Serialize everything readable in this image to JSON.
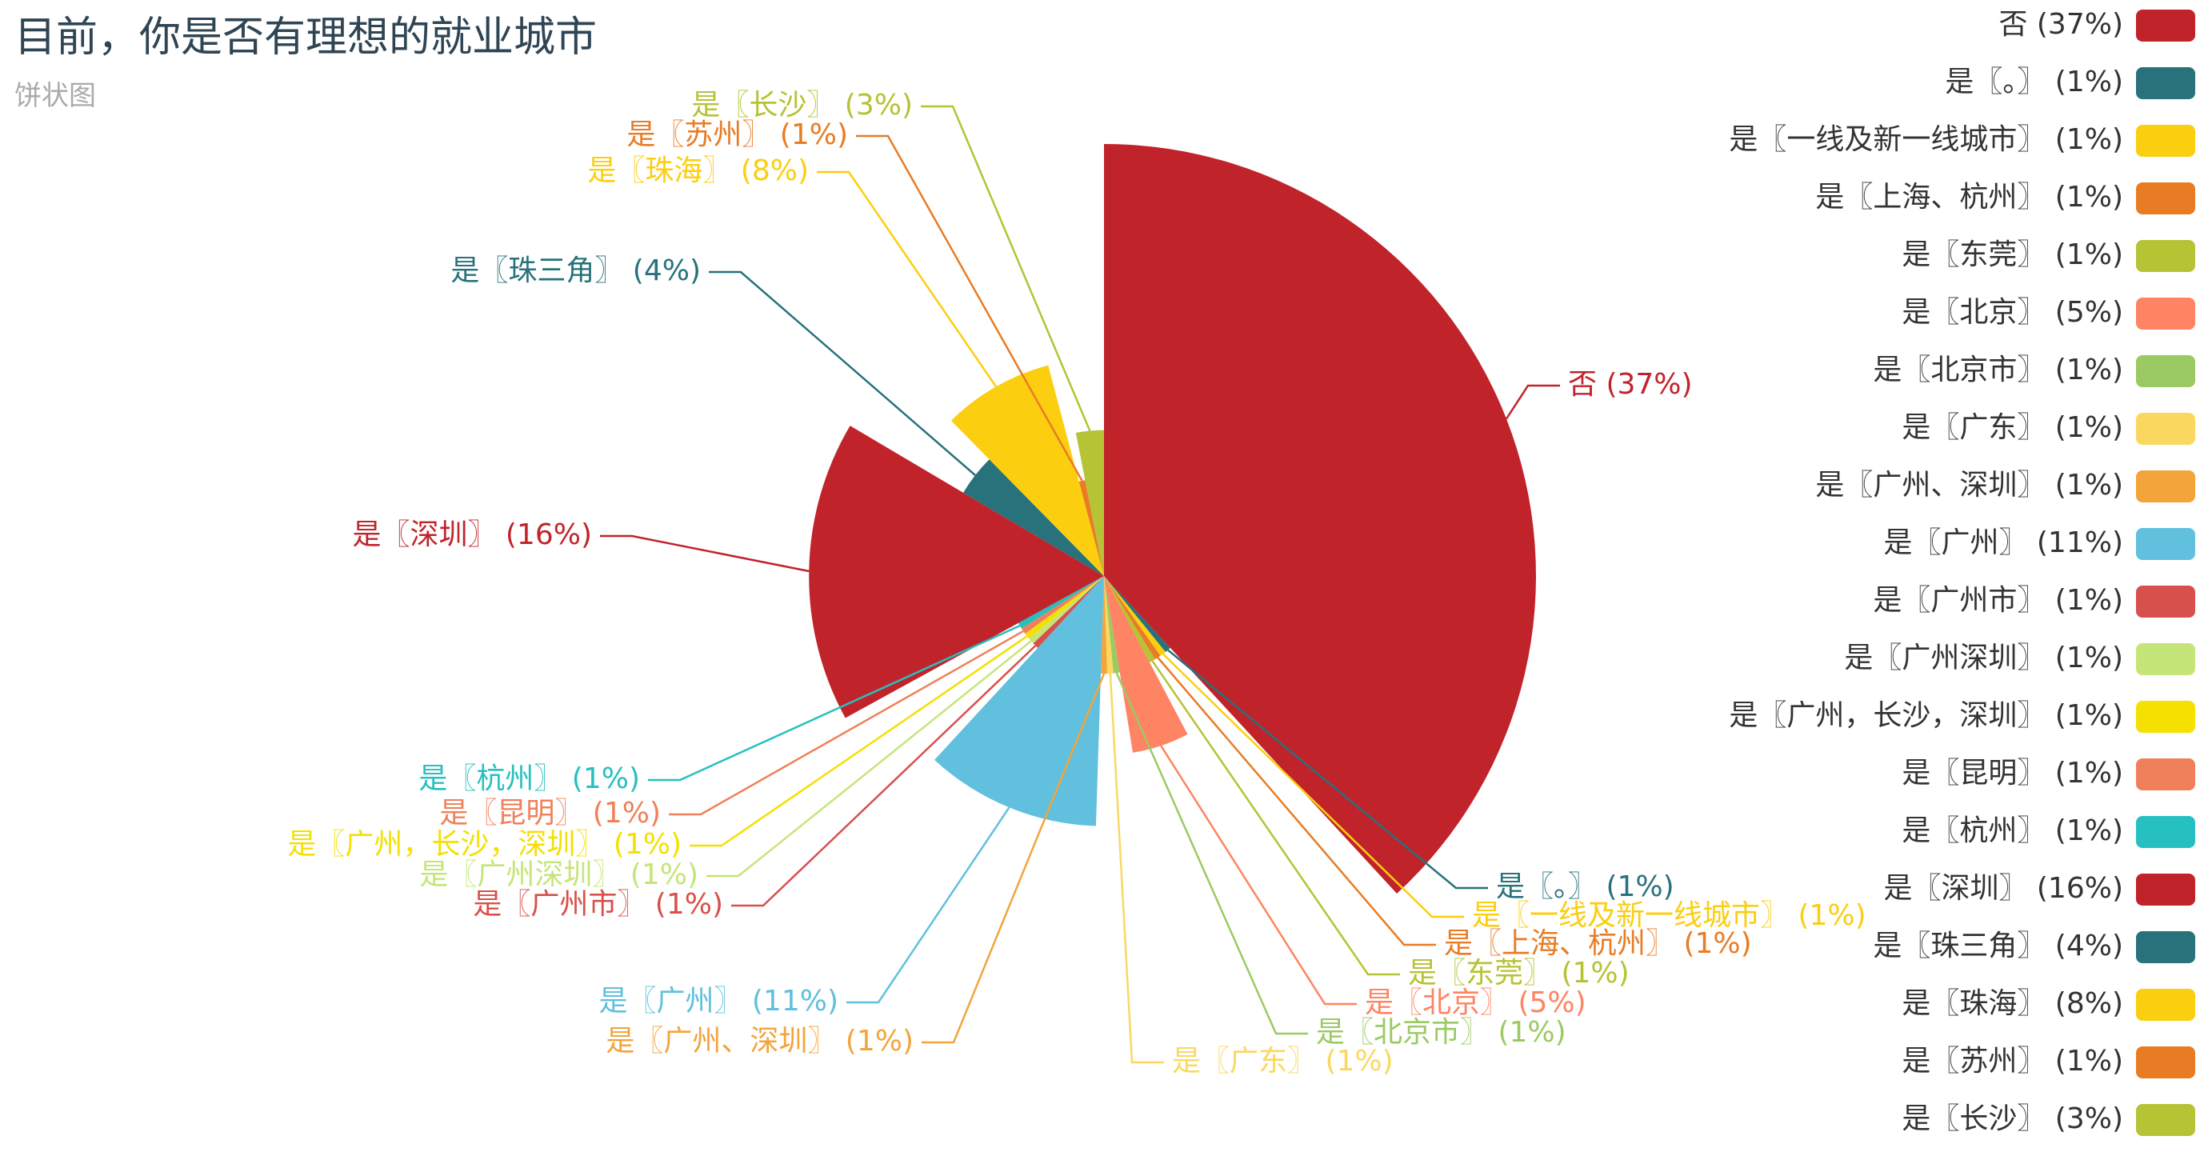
{
  "chart_data": {
    "type": "pie",
    "title": "目前，你是否有理想的就业城市",
    "subtitle": "饼状图",
    "legend_position": "right",
    "slices": [
      {
        "name": "否",
        "label": "否 (37%)",
        "value": 37,
        "color": "#c1232b"
      },
      {
        "name": "是〖。〗",
        "label": "是〖。〗 (1%)",
        "value": 1,
        "color": "#27727b"
      },
      {
        "name": "是〖一线及新一线城市〗",
        "label": "是〖一线及新一线城市〗 (1%)",
        "value": 1,
        "color": "#fcce10"
      },
      {
        "name": "是〖上海、杭州〗",
        "label": "是〖上海、杭州〗 (1%)",
        "value": 1,
        "color": "#e87c25"
      },
      {
        "name": "是〖东莞〗",
        "label": "是〖东莞〗 (1%)",
        "value": 1,
        "color": "#b5c334"
      },
      {
        "name": "是〖北京〗",
        "label": "是〖北京〗 (5%)",
        "value": 5,
        "color": "#fe8463"
      },
      {
        "name": "是〖北京市〗",
        "label": "是〖北京市〗 (1%)",
        "value": 1,
        "color": "#9bca63"
      },
      {
        "name": "是〖广东〗",
        "label": "是〖广东〗 (1%)",
        "value": 1,
        "color": "#fad860"
      },
      {
        "name": "是〖广州、深圳〗",
        "label": "是〖广州、深圳〗 (1%)",
        "value": 1,
        "color": "#f3a43b"
      },
      {
        "name": "是〖广州〗",
        "label": "是〖广州〗 (11%)",
        "value": 11,
        "color": "#60c0dd"
      },
      {
        "name": "是〖广州市〗",
        "label": "是〖广州市〗 (1%)",
        "value": 1,
        "color": "#d7504b"
      },
      {
        "name": "是〖广州深圳〗",
        "label": "是〖广州深圳〗 (1%)",
        "value": 1,
        "color": "#c6e579"
      },
      {
        "name": "是〖广州，长沙，深圳〗",
        "label": "是〖广州，长沙，深圳〗 (1%)",
        "value": 1,
        "color": "#f4e001"
      },
      {
        "name": "是〖昆明〗",
        "label": "是〖昆明〗 (1%)",
        "value": 1,
        "color": "#f0805a"
      },
      {
        "name": "是〖杭州〗",
        "label": "是〖杭州〗 (1%)",
        "value": 1,
        "color": "#26c0c0"
      },
      {
        "name": "是〖深圳〗",
        "label": "是〖深圳〗 (16%)",
        "value": 16,
        "color": "#c1232b"
      },
      {
        "name": "是〖珠三角〗",
        "label": "是〖珠三角〗 (4%)",
        "value": 4,
        "color": "#27727b"
      },
      {
        "name": "是〖珠海〗",
        "label": "是〖珠海〗 (8%)",
        "value": 8,
        "color": "#fcce10"
      },
      {
        "name": "是〖苏州〗",
        "label": "是〖苏州〗 (1%)",
        "value": 1,
        "color": "#e87c25"
      },
      {
        "name": "是〖长沙〗",
        "label": "是〖长沙〗 (3%)",
        "value": 3,
        "color": "#b5c334"
      }
    ]
  }
}
